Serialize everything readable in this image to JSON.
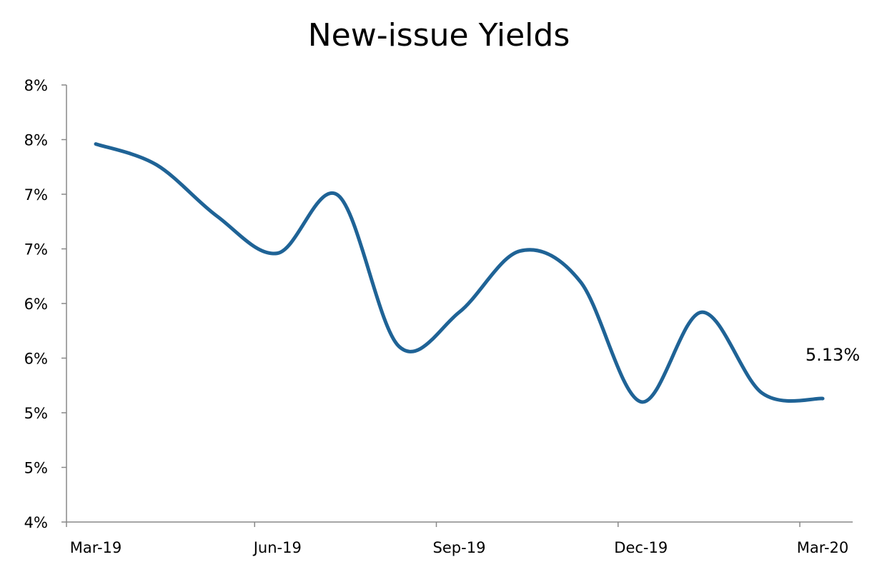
{
  "chart_data": {
    "type": "line",
    "title": "New-issue Yields",
    "xlabel": "",
    "ylabel": "",
    "x_tick_labels": [
      "Mar-19",
      "Jun-19",
      "Sep-19",
      "Dec-19",
      "Mar-20"
    ],
    "y_tick_labels": [
      "4%",
      "5%",
      "5%",
      "6%",
      "6%",
      "7%",
      "7%",
      "8%",
      "8%"
    ],
    "ylim": [
      4.0,
      8.0
    ],
    "grid": false,
    "legend": "none",
    "series": [
      {
        "color": "#1F6396",
        "x": [
          "Mar-19",
          "Apr-19",
          "May-19",
          "Jun-19",
          "Jul-19",
          "Aug-19",
          "Sep-19",
          "Oct-19",
          "Nov-19",
          "Dec-19",
          "Jan-20",
          "Feb-20",
          "Mar-20"
        ],
        "y": [
          7.46,
          7.27,
          6.8,
          6.46,
          6.99,
          5.61,
          5.92,
          6.48,
          6.2,
          5.1,
          5.92,
          5.18,
          5.13
        ]
      }
    ],
    "annotations": [
      {
        "text": "5.13%",
        "x": "Mar-20",
        "y": 5.13
      }
    ]
  }
}
